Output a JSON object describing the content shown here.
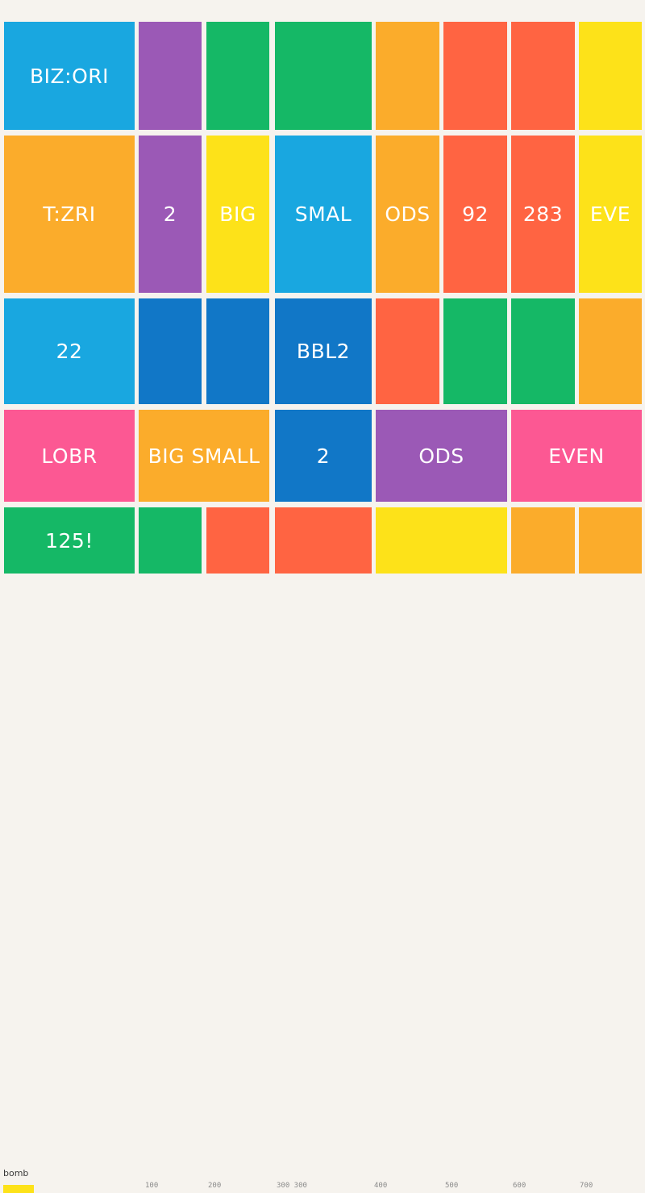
{
  "board": {
    "tiles": [
      {
        "label": "BIZ:ORI",
        "color": "#19a7e0"
      },
      {
        "label": "",
        "color": "#9b59b6"
      },
      {
        "label": "",
        "color": "#15b866"
      },
      {
        "label": "",
        "color": "#15b866"
      },
      {
        "label": "",
        "color": "#fbac2b"
      },
      {
        "label": "",
        "color": "#ff6442"
      },
      {
        "label": "",
        "color": "#ff6442"
      },
      {
        "label": "",
        "color": "#fde219"
      },
      {
        "label": "T:ZRI",
        "color": "#fbac2b"
      },
      {
        "label": "2",
        "color": "#9b59b6"
      },
      {
        "label": "BIG",
        "color": "#fde219"
      },
      {
        "label": "SMAL",
        "color": "#19a7e0"
      },
      {
        "label": "ODS",
        "color": "#fbac2b"
      },
      {
        "label": "92",
        "color": "#ff6442"
      },
      {
        "label": "283",
        "color": "#ff6442"
      },
      {
        "label": "EVE",
        "color": "#fde219"
      },
      {
        "label": "22",
        "color": "#19a7e0"
      },
      {
        "label": "",
        "color": "#1177c7"
      },
      {
        "label": "",
        "color": "#1177c7"
      },
      {
        "label": "BBL2",
        "color": "#1177c7"
      },
      {
        "label": "",
        "color": "#ff6442"
      },
      {
        "label": "",
        "color": "#15b866"
      },
      {
        "label": "",
        "color": "#15b866"
      },
      {
        "label": "",
        "color": "#fbac2b"
      },
      {
        "label": "LOBR",
        "color": "#fc5893"
      },
      {
        "label": "BIG SMALL",
        "color": "#fbac2b"
      },
      {
        "label": "2",
        "color": "#1177c7"
      },
      {
        "label": "ODS",
        "color": "#9b59b6"
      },
      {
        "label": "EVEN",
        "color": "#fc5893"
      },
      {
        "label": "125!",
        "color": "#15b866"
      },
      {
        "label": "",
        "color": "#15b866"
      },
      {
        "label": "",
        "color": "#ff6442"
      },
      {
        "label": "",
        "color": "#ff6442"
      },
      {
        "label": "",
        "color": "#fde219"
      },
      {
        "label": "",
        "color": "#fbac2b"
      },
      {
        "label": "",
        "color": "#fbac2b"
      }
    ]
  },
  "footer": {
    "label": "bomb",
    "bar_color": "#fde219",
    "ticks": [
      "100",
      "200",
      "300 300",
      "400",
      "500",
      "600",
      "700"
    ]
  }
}
